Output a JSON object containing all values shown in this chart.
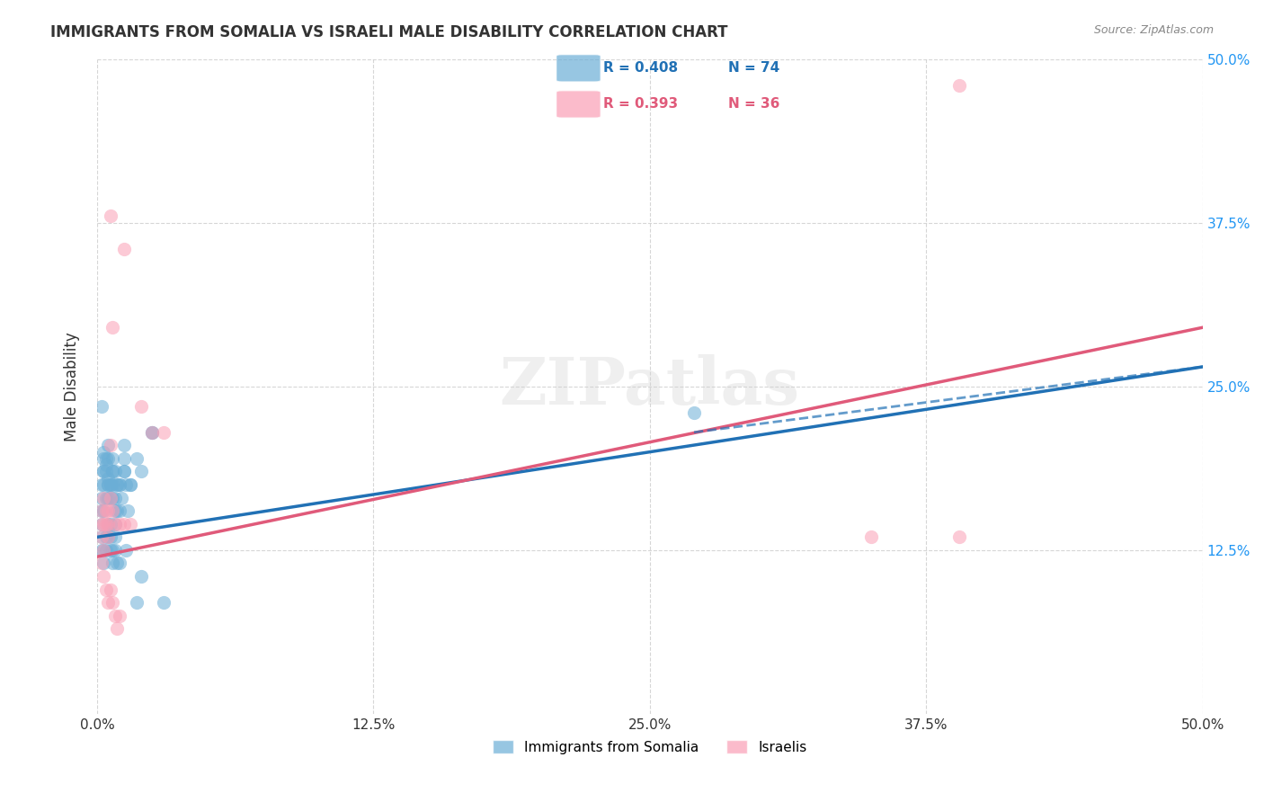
{
  "title": "IMMIGRANTS FROM SOMALIA VS ISRAELI MALE DISABILITY CORRELATION CHART",
  "source": "Source: ZipAtlas.com",
  "xlabel": "",
  "ylabel": "Male Disability",
  "xlim": [
    0.0,
    0.5
  ],
  "ylim": [
    0.0,
    0.5
  ],
  "xtick_labels": [
    "0.0%",
    "12.5%",
    "25.0%",
    "37.5%",
    "50.0%"
  ],
  "xtick_values": [
    0.0,
    0.125,
    0.25,
    0.375,
    0.5
  ],
  "ytick_labels_right": [
    "50.0%",
    "37.5%",
    "25.0%",
    "12.5%"
  ],
  "ytick_values_right": [
    0.5,
    0.375,
    0.25,
    0.125
  ],
  "blue_color": "#6baed6",
  "pink_color": "#fa9fb5",
  "blue_line_color": "#2171b5",
  "pink_line_color": "#e05a7a",
  "legend_blue_r": "R = 0.408",
  "legend_blue_n": "N = 74",
  "legend_pink_r": "R = 0.393",
  "legend_pink_n": "N = 36",
  "watermark": "ZIPatlas",
  "legend1_label": "Immigrants from Somalia",
  "legend2_label": "Israelis",
  "blue_scatter_x": [
    0.002,
    0.003,
    0.004,
    0.005,
    0.006,
    0.007,
    0.008,
    0.01,
    0.012,
    0.014,
    0.002,
    0.003,
    0.005,
    0.006,
    0.007,
    0.008,
    0.009,
    0.01,
    0.012,
    0.015,
    0.003,
    0.004,
    0.005,
    0.006,
    0.007,
    0.008,
    0.01,
    0.012,
    0.018,
    0.025,
    0.002,
    0.003,
    0.004,
    0.005,
    0.006,
    0.007,
    0.008,
    0.009,
    0.011,
    0.013,
    0.002,
    0.003,
    0.004,
    0.005,
    0.006,
    0.007,
    0.008,
    0.009,
    0.02,
    0.03,
    0.002,
    0.003,
    0.004,
    0.005,
    0.006,
    0.007,
    0.008,
    0.01,
    0.013,
    0.018,
    0.002,
    0.003,
    0.005,
    0.007,
    0.009,
    0.012,
    0.015,
    0.02,
    0.025,
    0.27,
    0.002,
    0.003,
    0.004,
    0.005
  ],
  "blue_scatter_y": [
    0.155,
    0.175,
    0.185,
    0.195,
    0.165,
    0.175,
    0.155,
    0.175,
    0.185,
    0.155,
    0.165,
    0.195,
    0.205,
    0.175,
    0.185,
    0.165,
    0.175,
    0.155,
    0.195,
    0.175,
    0.185,
    0.195,
    0.165,
    0.175,
    0.195,
    0.185,
    0.175,
    0.205,
    0.195,
    0.215,
    0.145,
    0.155,
    0.165,
    0.175,
    0.145,
    0.165,
    0.145,
    0.155,
    0.165,
    0.175,
    0.135,
    0.125,
    0.135,
    0.145,
    0.135,
    0.125,
    0.135,
    0.115,
    0.105,
    0.085,
    0.125,
    0.115,
    0.125,
    0.135,
    0.125,
    0.115,
    0.125,
    0.115,
    0.125,
    0.085,
    0.175,
    0.185,
    0.175,
    0.185,
    0.175,
    0.185,
    0.175,
    0.185,
    0.215,
    0.23,
    0.235,
    0.2,
    0.19,
    0.18
  ],
  "pink_scatter_x": [
    0.002,
    0.003,
    0.004,
    0.005,
    0.006,
    0.007,
    0.008,
    0.01,
    0.012,
    0.015,
    0.002,
    0.003,
    0.005,
    0.006,
    0.02,
    0.025,
    0.03,
    0.35,
    0.39,
    0.39,
    0.002,
    0.003,
    0.004,
    0.005,
    0.006,
    0.007,
    0.008,
    0.009,
    0.01,
    0.012,
    0.002,
    0.003,
    0.004,
    0.005,
    0.006,
    0.007
  ],
  "pink_scatter_y": [
    0.145,
    0.145,
    0.155,
    0.145,
    0.165,
    0.155,
    0.145,
    0.145,
    0.145,
    0.145,
    0.135,
    0.125,
    0.135,
    0.205,
    0.235,
    0.215,
    0.215,
    0.135,
    0.135,
    0.48,
    0.115,
    0.105,
    0.095,
    0.085,
    0.095,
    0.085,
    0.075,
    0.065,
    0.075,
    0.355,
    0.155,
    0.165,
    0.145,
    0.155,
    0.38,
    0.295
  ],
  "blue_line_x": [
    0.0,
    0.5
  ],
  "blue_line_y_start": 0.135,
  "blue_line_y_end": 0.265,
  "pink_line_x": [
    0.0,
    0.5
  ],
  "pink_line_y_start": 0.12,
  "pink_line_y_end": 0.295,
  "dash_line_x": [
    0.27,
    0.5
  ],
  "dash_line_y_start": 0.215,
  "dash_line_y_end": 0.265,
  "background_color": "#ffffff",
  "grid_color": "#cccccc"
}
